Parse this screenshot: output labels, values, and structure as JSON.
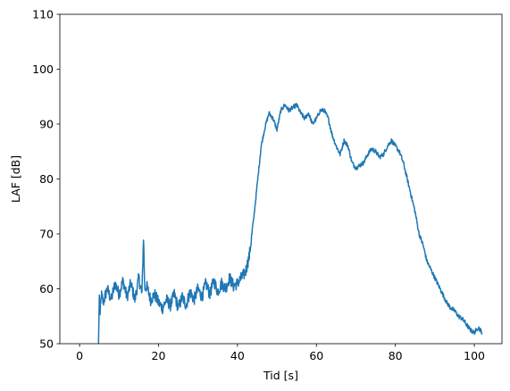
{
  "chart_data": {
    "type": "line",
    "title": "",
    "xlabel": "Tid [s]",
    "ylabel": "LAF [dB]",
    "xlim": [
      -5,
      107
    ],
    "ylim": [
      50,
      110
    ],
    "xticks": [
      0,
      20,
      40,
      60,
      80,
      100
    ],
    "yticks": [
      50,
      60,
      70,
      80,
      90,
      100,
      110
    ],
    "grid": false,
    "legend": "none",
    "series_color": "#1f77b4",
    "series": [
      {
        "x": [
          4.8,
          5.0,
          5.2,
          5.5,
          6,
          7,
          8,
          9,
          10,
          11,
          12,
          13,
          14,
          15,
          15.8,
          16.2,
          16.5,
          17,
          18,
          19,
          20,
          21,
          22,
          23,
          24,
          25,
          26,
          27,
          28,
          29,
          30,
          31,
          32,
          33,
          34,
          35,
          36,
          37,
          38,
          39,
          40,
          41,
          42,
          43,
          44,
          45,
          46,
          47,
          48,
          49,
          50,
          51,
          52,
          53,
          54,
          55,
          56,
          57,
          58,
          59,
          60,
          61,
          62,
          63,
          64,
          65,
          66,
          67,
          68,
          69,
          70,
          71,
          72,
          73,
          74,
          75,
          76,
          77,
          78,
          79,
          80,
          81,
          82,
          83,
          84,
          85,
          86,
          87,
          88,
          89,
          90,
          91,
          92,
          93,
          94,
          95,
          96,
          97,
          98,
          99,
          100,
          101,
          102
        ],
        "y": [
          50,
          58.5,
          55,
          59,
          57.5,
          60,
          58,
          61,
          59,
          61.5,
          58.5,
          61,
          58,
          62,
          59,
          69.5,
          60,
          60.5,
          58,
          59,
          57.5,
          56.5,
          58,
          57,
          59,
          56.5,
          58.5,
          57,
          59.5,
          58,
          60,
          58.5,
          61,
          59,
          61.5,
          59.5,
          61,
          60,
          62,
          60.5,
          61,
          62,
          63,
          66,
          72,
          79,
          86,
          89.5,
          92,
          91,
          89,
          92.5,
          93.5,
          92.5,
          93,
          93.5,
          92,
          91,
          92,
          90,
          91,
          92.5,
          92.5,
          91,
          88,
          86,
          84.5,
          87,
          86,
          83,
          82,
          82.5,
          83,
          84.5,
          85.5,
          85,
          84,
          84.5,
          86,
          87,
          86,
          85,
          83,
          80,
          77,
          74,
          70,
          68,
          65,
          63.5,
          62,
          60.5,
          59,
          57.5,
          56.5,
          56,
          55,
          54.5,
          53.5,
          52.5,
          52,
          53,
          52
        ]
      }
    ]
  }
}
